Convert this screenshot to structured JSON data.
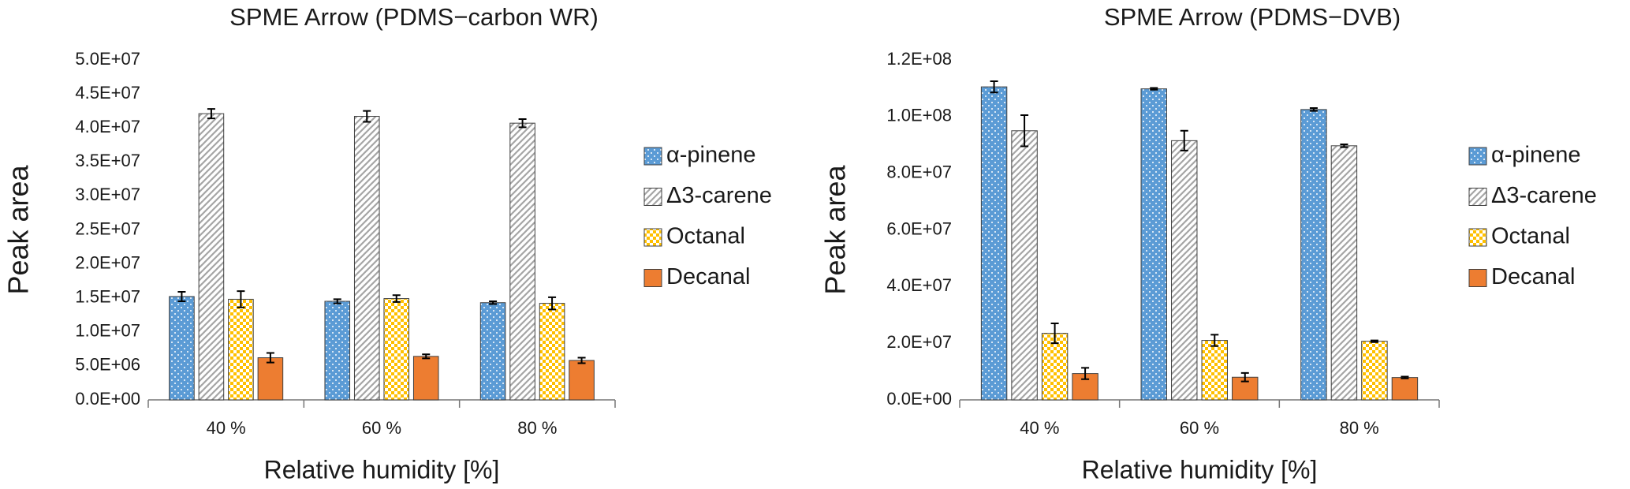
{
  "chart_data": [
    {
      "type": "bar",
      "title": "SPME Arrow (PDMS−carbon WR)",
      "xlabel": "Relative humidity [%]",
      "ylabel": "Peak area",
      "categories": [
        "40 %",
        "60 %",
        "80 %"
      ],
      "ylim": [
        0,
        50000000
      ],
      "yticks": [
        {
          "value": 0,
          "label": "0.0E+00"
        },
        {
          "value": 5000000,
          "label": "5.0E+06"
        },
        {
          "value": 10000000,
          "label": "1.0E+07"
        },
        {
          "value": 15000000,
          "label": "1.5E+07"
        },
        {
          "value": 20000000,
          "label": "2.0E+07"
        },
        {
          "value": 25000000,
          "label": "2.5E+07"
        },
        {
          "value": 30000000,
          "label": "3.0E+07"
        },
        {
          "value": 35000000,
          "label": "3.5E+07"
        },
        {
          "value": 40000000,
          "label": "4.0E+07"
        },
        {
          "value": 45000000,
          "label": "4.5E+07"
        },
        {
          "value": 50000000,
          "label": "5.0E+07"
        }
      ],
      "legend": "right",
      "series": [
        {
          "name": "α-pinene",
          "color": "#5b9bd5",
          "pattern": "dots",
          "values": [
            15200000,
            14500000,
            14300000
          ],
          "errors": [
            700000,
            300000,
            200000
          ]
        },
        {
          "name": "Δ3-carene",
          "color": "#a5a5a5",
          "pattern": "hatch",
          "values": [
            42100000,
            41700000,
            40700000
          ],
          "errors": [
            700000,
            800000,
            600000
          ]
        },
        {
          "name": "Octanal",
          "color": "#ffc000",
          "pattern": "checker",
          "values": [
            14800000,
            14900000,
            14200000
          ],
          "errors": [
            1200000,
            500000,
            900000
          ]
        },
        {
          "name": "Decanal",
          "color": "#ed7d31",
          "pattern": "solid",
          "values": [
            6200000,
            6400000,
            5800000
          ],
          "errors": [
            700000,
            300000,
            400000
          ]
        }
      ]
    },
    {
      "type": "bar",
      "title": "SPME Arrow (PDMS−DVB)",
      "xlabel": "Relative humidity [%]",
      "ylabel": "Peak area",
      "categories": [
        "40 %",
        "60 %",
        "80 %"
      ],
      "ylim": [
        0,
        120000000
      ],
      "yticks": [
        {
          "value": 0,
          "label": "0.0E+00"
        },
        {
          "value": 20000000,
          "label": "2.0E+07"
        },
        {
          "value": 40000000,
          "label": "4.0E+07"
        },
        {
          "value": 60000000,
          "label": "6.0E+07"
        },
        {
          "value": 80000000,
          "label": "8.0E+07"
        },
        {
          "value": 100000000,
          "label": "1.0E+08"
        },
        {
          "value": 120000000,
          "label": "1.2E+08"
        }
      ],
      "legend": "right",
      "series": [
        {
          "name": "α-pinene",
          "color": "#5b9bd5",
          "pattern": "dots",
          "values": [
            110500000,
            109800000,
            102500000
          ],
          "errors": [
            2000000,
            300000,
            500000
          ]
        },
        {
          "name": "Δ3-carene",
          "color": "#a5a5a5",
          "pattern": "hatch",
          "values": [
            95000000,
            91500000,
            89700000
          ],
          "errors": [
            5500000,
            3500000,
            500000
          ]
        },
        {
          "name": "Octanal",
          "color": "#ffc000",
          "pattern": "checker",
          "values": [
            23500000,
            21000000,
            20700000
          ],
          "errors": [
            3500000,
            2000000,
            300000
          ]
        },
        {
          "name": "Decanal",
          "color": "#ed7d31",
          "pattern": "solid",
          "values": [
            9300000,
            8000000,
            7900000
          ],
          "errors": [
            2000000,
            1500000,
            300000
          ]
        }
      ]
    }
  ]
}
